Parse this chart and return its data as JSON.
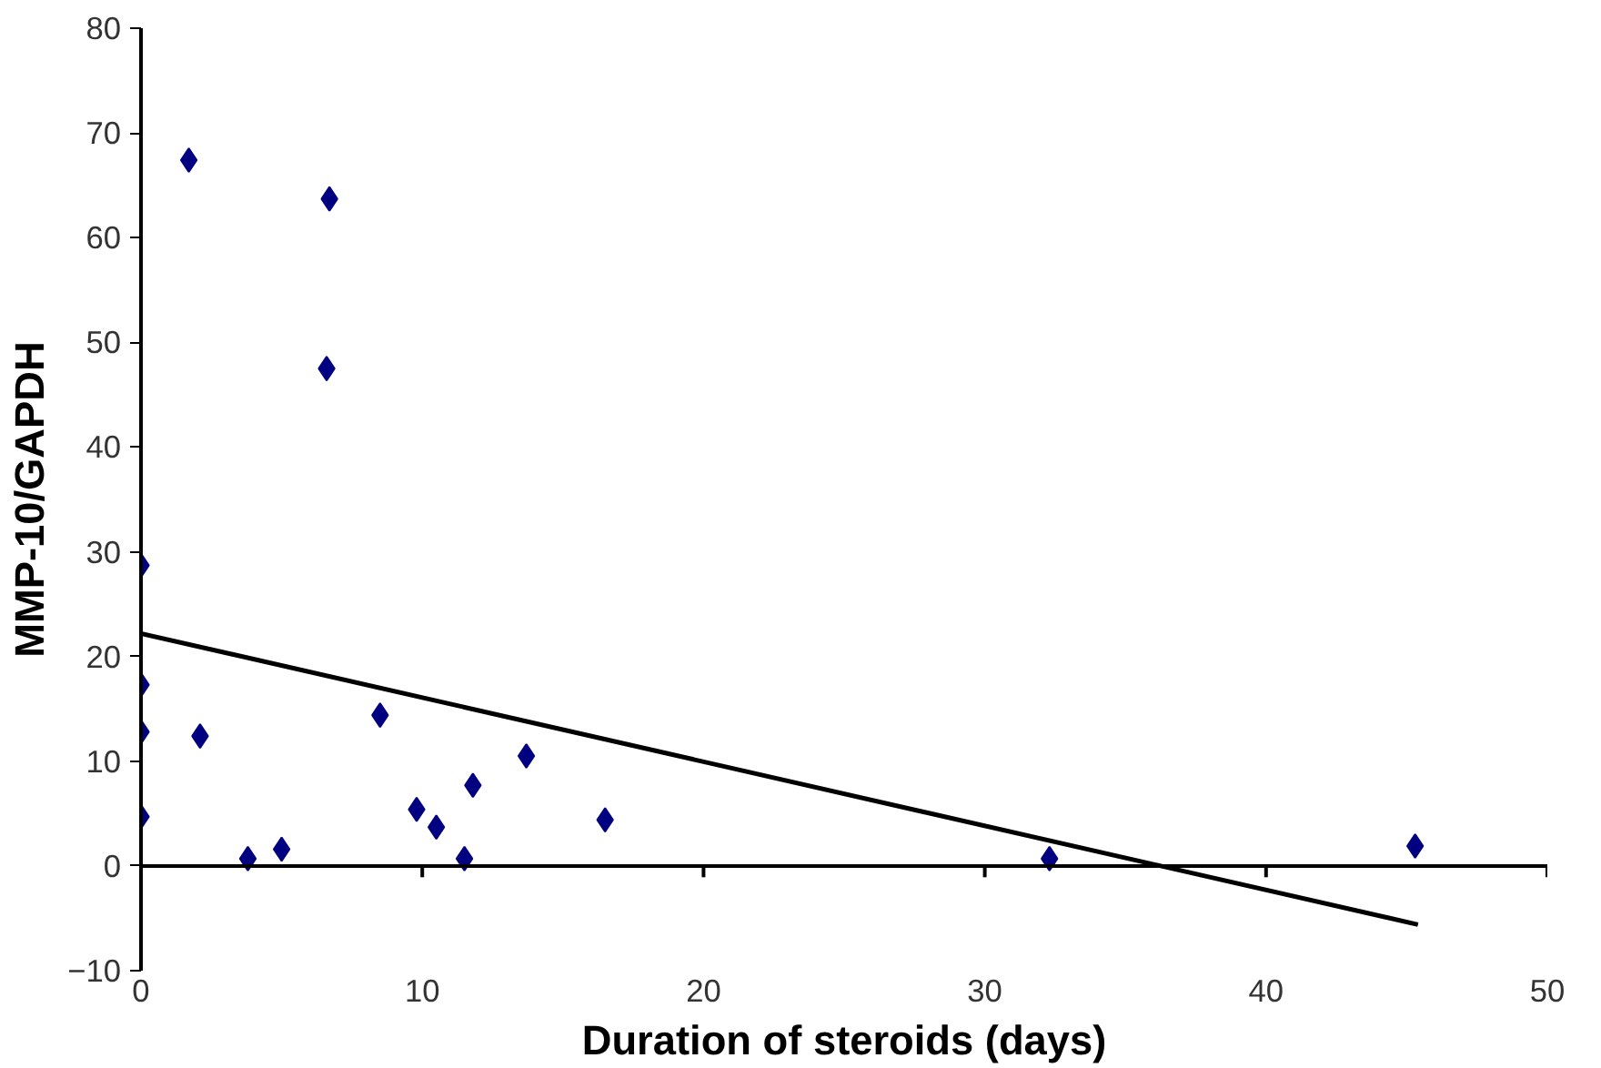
{
  "chart_data": {
    "type": "scatter",
    "xlabel": "Duration of steroids (days)",
    "ylabel": "MMP-10/GAPDH",
    "marker": "diamond",
    "line_style": "solid",
    "xlim": [
      0,
      50
    ],
    "ylim": [
      -10,
      80
    ],
    "xticks": [
      0,
      10,
      20,
      30,
      40,
      50
    ],
    "yticks": [
      -10,
      0,
      10,
      20,
      30,
      40,
      50,
      60,
      70,
      80
    ],
    "series": [
      {
        "color": "#000080",
        "x": [
          1.7,
          6.7,
          6.6,
          0,
          0,
          0,
          2.1,
          0,
          3.8,
          5.0,
          8.5,
          9.8,
          10.5,
          11.5,
          11.8,
          13.7,
          16.5,
          32.3,
          45.3
        ],
        "values": [
          67.4,
          63.7,
          47.5,
          28.7,
          17.3,
          12.8,
          12.4,
          4.7,
          0.7,
          1.6,
          14.4,
          5.4,
          3.7,
          0.7,
          7.7,
          10.5,
          4.4,
          0.7,
          1.9
        ]
      },
      {
        "type": "line",
        "marker": "none",
        "color": "#000000",
        "x": [
          0,
          45.4
        ],
        "values": [
          22.2,
          -5.6
        ]
      }
    ]
  }
}
